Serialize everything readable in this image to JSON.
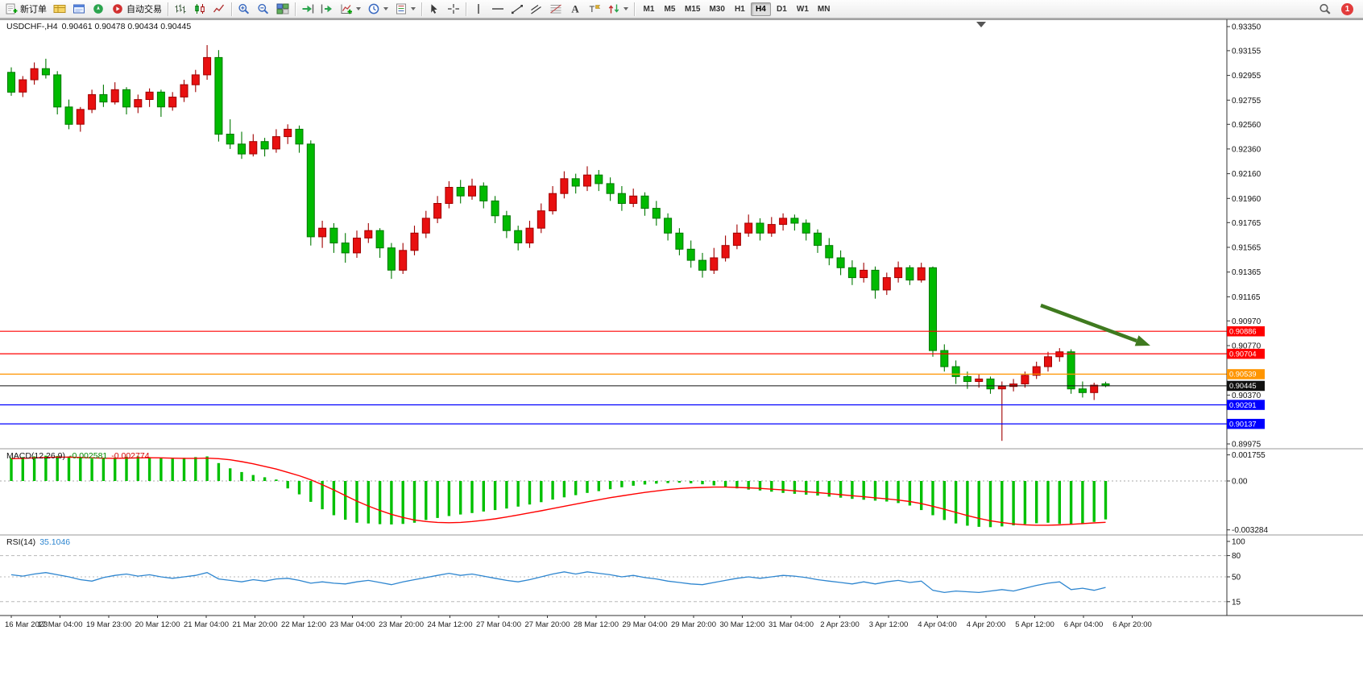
{
  "toolbar": {
    "buttons": [
      {
        "name": "new-order",
        "icon": "new-order-icon",
        "label": "新订单"
      },
      {
        "name": "market-watch",
        "icon": "market-watch-icon"
      },
      {
        "name": "data-window",
        "icon": "data-window-icon"
      },
      {
        "name": "navigator",
        "icon": "navigator-icon"
      },
      {
        "name": "auto-trading",
        "icon": "autotrade-icon",
        "label": "自动交易"
      },
      {
        "type": "sep"
      },
      {
        "name": "bar-chart-mode",
        "icon": "bar-chart-icon"
      },
      {
        "name": "candle-chart-mode",
        "icon": "candlestick-icon"
      },
      {
        "name": "line-chart-mode",
        "icon": "line-chart-icon"
      },
      {
        "type": "sep"
      },
      {
        "name": "zoom-in",
        "icon": "zoom-in-icon"
      },
      {
        "name": "zoom-out",
        "icon": "zoom-out-icon"
      },
      {
        "name": "tile-windows",
        "icon": "tile-windows-icon"
      },
      {
        "type": "sep"
      },
      {
        "name": "auto-scroll",
        "icon": "auto-scroll-icon"
      },
      {
        "name": "chart-shift",
        "icon": "chart-shift-icon"
      },
      {
        "name": "indicators",
        "icon": "indicators-icon",
        "dropdown": true
      },
      {
        "name": "periods",
        "icon": "clock-icon",
        "dropdown": true
      },
      {
        "name": "templates",
        "icon": "template-icon",
        "dropdown": true
      },
      {
        "type": "sep"
      },
      {
        "name": "cursor",
        "icon": "cursor-icon"
      },
      {
        "name": "crosshair",
        "icon": "crosshair-icon"
      },
      {
        "type": "sep"
      },
      {
        "name": "vertical-line",
        "icon": "vertical-line-icon"
      },
      {
        "name": "horizontal-line",
        "icon": "horizontal-line-icon"
      },
      {
        "name": "trendline",
        "icon": "trendline-icon"
      },
      {
        "name": "channel",
        "icon": "channel-icon"
      },
      {
        "name": "fibonacci",
        "icon": "fibonacci-icon"
      },
      {
        "name": "text",
        "icon": "text-icon"
      },
      {
        "name": "text-label",
        "icon": "text-label-icon"
      },
      {
        "name": "arrows",
        "icon": "arrow-tools-icon",
        "dropdown": true
      },
      {
        "type": "sep"
      }
    ],
    "timeframes": [
      "M1",
      "M5",
      "M15",
      "M30",
      "H1",
      "H4",
      "D1",
      "W1",
      "MN"
    ],
    "active_timeframe": "H4",
    "notification_count": "1"
  },
  "chart": {
    "symbol_title": "USDCHF-,H4",
    "ohlc_text": "0.90461 0.90478 0.90434 0.90445"
  },
  "colors": {
    "bull_candle": "#E81010",
    "bull_candle_border": "#A00000",
    "bear_candle": "#00BA00",
    "bear_candle_border": "#007800",
    "macd_histogram": "#00C000",
    "macd_signal": "#FF0000",
    "rsi_line": "#2E86D0",
    "level_red": "#FF0000",
    "level_orange": "#FF9500",
    "level_blue": "#0000FF",
    "current_price_tag": "#111111",
    "arrow_green": "#3F7A1F"
  },
  "chart_data": {
    "type": "candlestick",
    "symbol": "USDCHF",
    "period": "H4",
    "current_ohlc": {
      "open": "0.90461",
      "high": "0.90478",
      "low": "0.90434",
      "close": "0.90445"
    },
    "y_axis": {
      "min": 0.89975,
      "max": 0.9335,
      "ticks": [
        "0.93350",
        "0.93155",
        "0.92955",
        "0.92755",
        "0.92560",
        "0.92360",
        "0.92160",
        "0.91960",
        "0.91765",
        "0.91565",
        "0.91365",
        "0.91165",
        "0.90970",
        "0.90770",
        "0.90370",
        "0.89975"
      ]
    },
    "x_axis": {
      "date_labels": [
        "16 Mar 2023",
        "17 Mar 04:00",
        "19 Mar 23:00",
        "20 Mar 12:00",
        "21 Mar 04:00",
        "21 Mar 20:00",
        "22 Mar 12:00",
        "23 Mar 04:00",
        "23 Mar 20:00",
        "24 Mar 12:00",
        "27 Mar 04:00",
        "27 Mar 20:00",
        "28 Mar 12:00",
        "29 Mar 04:00",
        "29 Mar 20:00",
        "30 Mar 12:00",
        "31 Mar 04:00",
        "2 Apr 23:00",
        "3 Apr 12:00",
        "4 Apr 04:00",
        "4 Apr 20:00",
        "5 Apr 12:00",
        "6 Apr 04:00",
        "6 Apr 20:00"
      ]
    },
    "hlines": [
      {
        "price": 0.90886,
        "label": "0.90886",
        "color": "#FF0000"
      },
      {
        "price": 0.90704,
        "label": "0.90704",
        "color": "#FF0000"
      },
      {
        "price": 0.90539,
        "label": "0.90539",
        "color": "#FF9500"
      },
      {
        "price": 0.90445,
        "label": "0.90445",
        "color": "#111111",
        "role": "current-price"
      },
      {
        "price": 0.90291,
        "label": "0.90291",
        "color": "#0000FF"
      },
      {
        "price": 0.90137,
        "label": "0.90137",
        "color": "#0000FF"
      }
    ],
    "candles": [
      [
        0.9298,
        0.9302,
        0.9279,
        0.9282
      ],
      [
        0.9282,
        0.9295,
        0.9278,
        0.9292
      ],
      [
        0.9292,
        0.9306,
        0.9288,
        0.9301
      ],
      [
        0.9301,
        0.9309,
        0.9293,
        0.9296
      ],
      [
        0.9296,
        0.9299,
        0.9264,
        0.927
      ],
      [
        0.927,
        0.9276,
        0.9252,
        0.9256
      ],
      [
        0.9256,
        0.927,
        0.925,
        0.9268
      ],
      [
        0.9268,
        0.9284,
        0.9265,
        0.928
      ],
      [
        0.928,
        0.9288,
        0.927,
        0.9274
      ],
      [
        0.9274,
        0.929,
        0.9272,
        0.9284
      ],
      [
        0.9284,
        0.9286,
        0.9264,
        0.927
      ],
      [
        0.927,
        0.928,
        0.9265,
        0.9276
      ],
      [
        0.9276,
        0.9285,
        0.927,
        0.9282
      ],
      [
        0.9282,
        0.9284,
        0.9262,
        0.927
      ],
      [
        0.927,
        0.9282,
        0.9267,
        0.9278
      ],
      [
        0.9278,
        0.9292,
        0.9274,
        0.9288
      ],
      [
        0.9288,
        0.93,
        0.9282,
        0.9296
      ],
      [
        0.9296,
        0.932,
        0.9292,
        0.931
      ],
      [
        0.931,
        0.9316,
        0.9242,
        0.9248
      ],
      [
        0.9248,
        0.926,
        0.9236,
        0.924
      ],
      [
        0.924,
        0.925,
        0.9228,
        0.9232
      ],
      [
        0.9232,
        0.9248,
        0.923,
        0.9242
      ],
      [
        0.9242,
        0.9245,
        0.923,
        0.9236
      ],
      [
        0.9236,
        0.9252,
        0.9233,
        0.9246
      ],
      [
        0.9246,
        0.9256,
        0.924,
        0.9252
      ],
      [
        0.9252,
        0.9255,
        0.9233,
        0.924
      ],
      [
        0.924,
        0.9243,
        0.9158,
        0.9165
      ],
      [
        0.9165,
        0.9178,
        0.9156,
        0.9172
      ],
      [
        0.9172,
        0.9176,
        0.9152,
        0.916
      ],
      [
        0.916,
        0.9168,
        0.9144,
        0.9152
      ],
      [
        0.9152,
        0.917,
        0.9148,
        0.9164
      ],
      [
        0.9164,
        0.9176,
        0.916,
        0.917
      ],
      [
        0.917,
        0.9172,
        0.9148,
        0.9156
      ],
      [
        0.9156,
        0.916,
        0.9131,
        0.9138
      ],
      [
        0.9138,
        0.916,
        0.9135,
        0.9154
      ],
      [
        0.9154,
        0.9174,
        0.915,
        0.9168
      ],
      [
        0.9168,
        0.9186,
        0.9164,
        0.918
      ],
      [
        0.918,
        0.9198,
        0.9176,
        0.9192
      ],
      [
        0.9192,
        0.921,
        0.9188,
        0.9205
      ],
      [
        0.9205,
        0.9211,
        0.9192,
        0.9198
      ],
      [
        0.9198,
        0.9212,
        0.9195,
        0.9206
      ],
      [
        0.9206,
        0.9209,
        0.9188,
        0.9194
      ],
      [
        0.9194,
        0.9198,
        0.9176,
        0.9182
      ],
      [
        0.9182,
        0.9186,
        0.9164,
        0.917
      ],
      [
        0.917,
        0.9174,
        0.9154,
        0.916
      ],
      [
        0.916,
        0.9178,
        0.9156,
        0.9172
      ],
      [
        0.9172,
        0.9192,
        0.9168,
        0.9186
      ],
      [
        0.9186,
        0.9206,
        0.9183,
        0.92
      ],
      [
        0.92,
        0.9218,
        0.9196,
        0.9212
      ],
      [
        0.9212,
        0.9216,
        0.92,
        0.9206
      ],
      [
        0.9206,
        0.9222,
        0.9202,
        0.9215
      ],
      [
        0.9215,
        0.9219,
        0.9202,
        0.9208
      ],
      [
        0.9208,
        0.9213,
        0.9194,
        0.92
      ],
      [
        0.92,
        0.9206,
        0.9186,
        0.9192
      ],
      [
        0.9192,
        0.9204,
        0.9189,
        0.9198
      ],
      [
        0.9198,
        0.9201,
        0.9182,
        0.9188
      ],
      [
        0.9188,
        0.9194,
        0.9174,
        0.918
      ],
      [
        0.918,
        0.9184,
        0.9162,
        0.9168
      ],
      [
        0.9168,
        0.9172,
        0.915,
        0.9155
      ],
      [
        0.9155,
        0.9162,
        0.914,
        0.9146
      ],
      [
        0.9146,
        0.9152,
        0.9132,
        0.9138
      ],
      [
        0.9138,
        0.9156,
        0.9135,
        0.9148
      ],
      [
        0.9148,
        0.9166,
        0.9145,
        0.9158
      ],
      [
        0.9158,
        0.9175,
        0.9155,
        0.9168
      ],
      [
        0.9168,
        0.9183,
        0.9165,
        0.9176
      ],
      [
        0.9176,
        0.918,
        0.9162,
        0.9168
      ],
      [
        0.9168,
        0.9181,
        0.9165,
        0.9175
      ],
      [
        0.9175,
        0.9184,
        0.917,
        0.918
      ],
      [
        0.918,
        0.9183,
        0.917,
        0.9176
      ],
      [
        0.9176,
        0.9179,
        0.9162,
        0.9168
      ],
      [
        0.9168,
        0.9171,
        0.9152,
        0.9158
      ],
      [
        0.9158,
        0.9164,
        0.9142,
        0.9148
      ],
      [
        0.9148,
        0.9154,
        0.9134,
        0.914
      ],
      [
        0.914,
        0.9146,
        0.9126,
        0.9132
      ],
      [
        0.9132,
        0.9144,
        0.9128,
        0.9138
      ],
      [
        0.9138,
        0.9141,
        0.9115,
        0.9122
      ],
      [
        0.9122,
        0.9136,
        0.9118,
        0.9132
      ],
      [
        0.9132,
        0.9145,
        0.9128,
        0.914
      ],
      [
        0.914,
        0.9142,
        0.9126,
        0.913
      ],
      [
        0.913,
        0.9144,
        0.9128,
        0.914
      ],
      [
        0.914,
        0.9141,
        0.9068,
        0.9073
      ],
      [
        0.9073,
        0.9078,
        0.9056,
        0.906
      ],
      [
        0.906,
        0.9065,
        0.9046,
        0.9052
      ],
      [
        0.9052,
        0.9056,
        0.9042,
        0.9048
      ],
      [
        0.9048,
        0.9054,
        0.9043,
        0.905
      ],
      [
        0.905,
        0.9052,
        0.9038,
        0.9042
      ],
      [
        0.9042,
        0.9048,
        0.9,
        0.9044
      ],
      [
        0.9044,
        0.905,
        0.904,
        0.9046
      ],
      [
        0.9046,
        0.9056,
        0.9043,
        0.9053
      ],
      [
        0.9053,
        0.9064,
        0.905,
        0.906
      ],
      [
        0.906,
        0.9072,
        0.9056,
        0.9068
      ],
      [
        0.9068,
        0.9075,
        0.9064,
        0.9072
      ],
      [
        0.9072,
        0.9074,
        0.9038,
        0.9042
      ],
      [
        0.9042,
        0.9048,
        0.9035,
        0.9039
      ],
      [
        0.9039,
        0.9047,
        0.9033,
        0.9045
      ],
      [
        0.90461,
        0.90478,
        0.90434,
        0.90445
      ]
    ],
    "indicators": [
      {
        "name": "MACD",
        "label": "MACD(12,26,9)",
        "value1": "-0.002581",
        "value2": "-0.002774",
        "axis_ticks": [
          "0.001755",
          "0.00",
          "-0.003284"
        ],
        "histogram": [
          0.00155,
          0.0016,
          0.00165,
          0.0017,
          0.00168,
          0.00165,
          0.00158,
          0.0015,
          0.00152,
          0.00158,
          0.00162,
          0.00165,
          0.0016,
          0.00155,
          0.0015,
          0.00155,
          0.0016,
          0.00165,
          0.0012,
          0.00085,
          0.0006,
          0.0004,
          0.00025,
          0.0001,
          -0.0005,
          -0.0009,
          -0.0014,
          -0.0019,
          -0.0023,
          -0.0026,
          -0.0028,
          -0.00285,
          -0.0029,
          -0.00292,
          -0.00288,
          -0.0028,
          -0.00262,
          -0.00248,
          -0.00235,
          -0.00225,
          -0.00215,
          -0.00205,
          -0.00195,
          -0.00185,
          -0.00172,
          -0.00158,
          -0.00142,
          -0.00125,
          -0.0011,
          -0.00095,
          -0.0008,
          -0.00068,
          -0.00055,
          -0.00042,
          -0.00032,
          -0.00024,
          -0.00018,
          -0.00014,
          -0.00012,
          -0.00015,
          -0.00022,
          -0.0003,
          -0.0004,
          -0.0005,
          -0.00058,
          -0.00064,
          -0.00072,
          -0.0008,
          -0.00086,
          -0.00092,
          -0.00098,
          -0.00105,
          -0.00112,
          -0.0012,
          -0.00126,
          -0.00132,
          -0.00138,
          -0.00148,
          -0.00165,
          -0.00195,
          -0.0023,
          -0.00262,
          -0.00285,
          -0.003,
          -0.00308,
          -0.0031,
          -0.00305,
          -0.00298,
          -0.0029,
          -0.00284,
          -0.0028,
          -0.00288,
          -0.00295,
          -0.0029,
          -0.00275,
          -0.002581
        ],
        "signal": [
          0.0015,
          0.00152,
          0.00155,
          0.00158,
          0.0016,
          0.0016,
          0.00158,
          0.00155,
          0.00153,
          0.00152,
          0.00153,
          0.00155,
          0.00156,
          0.00155,
          0.00153,
          0.00152,
          0.00152,
          0.00153,
          0.0015,
          0.00142,
          0.0013,
          0.00115,
          0.00098,
          0.0008,
          0.00058,
          0.00035,
          8e-05,
          -0.00025,
          -0.0006,
          -0.00098,
          -0.00135,
          -0.00168,
          -0.00198,
          -0.00224,
          -0.00245,
          -0.00262,
          -0.00272,
          -0.00278,
          -0.0028,
          -0.00278,
          -0.00272,
          -0.00264,
          -0.00254,
          -0.00242,
          -0.00228,
          -0.00214,
          -0.002,
          -0.00185,
          -0.0017,
          -0.00155,
          -0.0014,
          -0.00126,
          -0.00112,
          -0.001,
          -0.00088,
          -0.00077,
          -0.00067,
          -0.00058,
          -0.00051,
          -0.00046,
          -0.00043,
          -0.00041,
          -0.00041,
          -0.00043,
          -0.00046,
          -0.0005,
          -0.00055,
          -0.0006,
          -0.00066,
          -0.00072,
          -0.00078,
          -0.00085,
          -0.00092,
          -0.00099,
          -0.00106,
          -0.00113,
          -0.0012,
          -0.00128,
          -0.00138,
          -0.00152,
          -0.0017,
          -0.0019,
          -0.00211,
          -0.00232,
          -0.00251,
          -0.00267,
          -0.00279,
          -0.00288,
          -0.00294,
          -0.00297,
          -0.00297,
          -0.00295,
          -0.00291,
          -0.00286,
          -0.00281,
          -0.002774
        ]
      },
      {
        "name": "RSI",
        "label": "RSI(14)",
        "value1": "35.1046",
        "axis_ticks": [
          "100",
          "80",
          "50",
          "15"
        ],
        "levels": [
          80,
          50,
          15
        ],
        "values": [
          53,
          51,
          54,
          56,
          53,
          50,
          46,
          44,
          49,
          52,
          54,
          51,
          53,
          50,
          48,
          50,
          52,
          56,
          47,
          45,
          43,
          46,
          44,
          47,
          48,
          45,
          41,
          43,
          41,
          40,
          43,
          45,
          42,
          39,
          43,
          46,
          49,
          52,
          55,
          52,
          54,
          51,
          48,
          45,
          43,
          46,
          50,
          54,
          57,
          54,
          57,
          55,
          53,
          50,
          52,
          49,
          47,
          44,
          42,
          40,
          39,
          42,
          45,
          48,
          50,
          48,
          50,
          52,
          51,
          49,
          46,
          44,
          42,
          40,
          43,
          40,
          43,
          45,
          42,
          44,
          31,
          28,
          30,
          29,
          28,
          30,
          32,
          30,
          34,
          38,
          41,
          43,
          32,
          34,
          31,
          35.1
        ]
      }
    ],
    "annotations": [
      {
        "type": "arrow",
        "direction": "down-right",
        "color": "#3F7A1F",
        "description": "green downtrend arrow"
      }
    ]
  }
}
